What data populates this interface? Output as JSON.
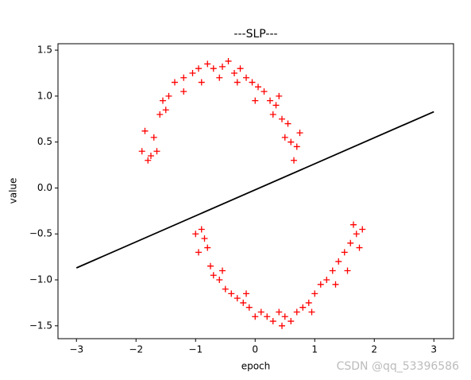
{
  "chart_data": {
    "type": "scatter",
    "title": "---SLP---",
    "xlabel": "epoch",
    "ylabel": "value",
    "watermark": "CSDN @qq_53396586",
    "xlim": [
      -3.31,
      3.33
    ],
    "ylim": [
      -1.64,
      1.57
    ],
    "xticks": [
      {
        "value": -3,
        "label": "−3"
      },
      {
        "value": -2,
        "label": "−2"
      },
      {
        "value": -1,
        "label": "−1"
      },
      0,
      1,
      2,
      3
    ],
    "yticks": [
      {
        "value": -1.5,
        "label": "−1.5"
      },
      {
        "value": -1.0,
        "label": "−1.0"
      },
      {
        "value": -0.5,
        "label": "−0.5"
      },
      {
        "value": 0,
        "label": "0.0"
      },
      {
        "value": 0.5,
        "label": "0.5"
      },
      {
        "value": 1.0,
        "label": "1.0"
      },
      {
        "value": 1.5,
        "label": "1.5"
      }
    ],
    "series": [
      {
        "type": "scatter",
        "color": "#ff0000",
        "x": [
          -1.9,
          -1.85,
          -1.75,
          -1.7,
          -1.6,
          -1.55,
          -1.45,
          -1.35,
          -1.2,
          -1.05,
          -0.95,
          -0.8,
          -0.7,
          -0.55,
          -0.45,
          -0.35,
          -0.25,
          -0.15,
          -0.05,
          0.05,
          0.15,
          0.25,
          0.35,
          0.45,
          0.55,
          0.6,
          0.7,
          0.65,
          0.75,
          -1.8,
          -1.65,
          -1.5,
          -1.2,
          -0.9,
          -0.6,
          -0.3,
          0.0,
          0.3,
          0.5,
          0.4,
          -1.0,
          -0.9,
          -0.95,
          -0.8,
          -0.75,
          -0.7,
          -0.6,
          -0.5,
          -0.4,
          -0.3,
          -0.2,
          -0.1,
          0.0,
          0.1,
          0.2,
          0.3,
          0.4,
          0.5,
          0.6,
          0.7,
          0.8,
          0.9,
          1.0,
          1.1,
          1.2,
          1.3,
          1.4,
          1.5,
          1.6,
          1.7,
          1.8,
          1.65,
          1.75,
          1.55,
          1.35,
          0.95,
          0.45,
          -0.15,
          -0.55,
          -0.85
        ],
        "values": [
          0.4,
          0.62,
          0.35,
          0.55,
          0.8,
          0.95,
          1.0,
          1.15,
          1.2,
          1.25,
          1.3,
          1.35,
          1.3,
          1.32,
          1.38,
          1.25,
          1.3,
          1.2,
          1.15,
          1.1,
          1.05,
          0.95,
          0.9,
          0.75,
          0.7,
          0.5,
          0.45,
          0.3,
          0.6,
          0.3,
          0.4,
          0.85,
          1.05,
          1.15,
          1.2,
          1.15,
          0.95,
          0.8,
          0.55,
          1.0,
          -0.5,
          -0.45,
          -0.7,
          -0.65,
          -0.85,
          -0.95,
          -1.0,
          -1.1,
          -1.15,
          -1.2,
          -1.25,
          -1.3,
          -1.4,
          -1.35,
          -1.4,
          -1.45,
          -1.35,
          -1.4,
          -1.45,
          -1.35,
          -1.3,
          -1.25,
          -1.15,
          -1.05,
          -1.0,
          -0.9,
          -0.8,
          -0.7,
          -0.6,
          -0.5,
          -0.45,
          -0.4,
          -0.65,
          -0.9,
          -1.05,
          -1.35,
          -1.5,
          -1.15,
          -0.9,
          -0.55
        ]
      },
      {
        "type": "line",
        "color": "#000000",
        "x": [
          -3,
          3
        ],
        "values": [
          -0.87,
          0.83
        ]
      }
    ]
  }
}
